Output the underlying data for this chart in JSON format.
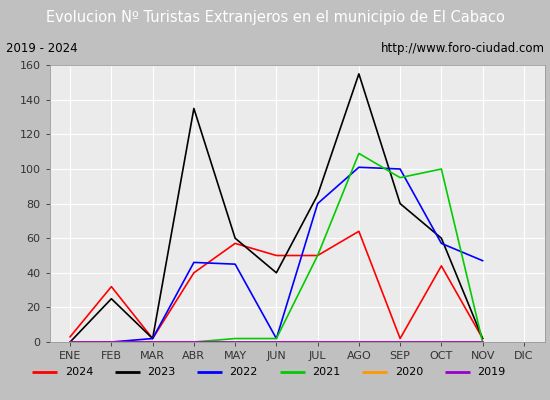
{
  "title": "Evolucion Nº Turistas Extranjeros en el municipio de El Cabaco",
  "subtitle_left": "2019 - 2024",
  "subtitle_right": "http://www.foro-ciudad.com",
  "months": [
    "ENE",
    "FEB",
    "MAR",
    "ABR",
    "MAY",
    "JUN",
    "JUL",
    "AGO",
    "SEP",
    "OCT",
    "NOV",
    "DIC"
  ],
  "series": {
    "2024": [
      3,
      32,
      2,
      40,
      57,
      50,
      50,
      64,
      2,
      44,
      2,
      null
    ],
    "2023": [
      0,
      25,
      2,
      135,
      60,
      40,
      85,
      155,
      80,
      60,
      2,
      null
    ],
    "2022": [
      0,
      0,
      2,
      46,
      45,
      2,
      80,
      101,
      100,
      57,
      47,
      null
    ],
    "2021": [
      0,
      0,
      0,
      0,
      2,
      2,
      50,
      109,
      95,
      100,
      0,
      null
    ],
    "2020": [
      0,
      0,
      0,
      0,
      0,
      0,
      0,
      0,
      0,
      0,
      0,
      null
    ],
    "2019": [
      0,
      0,
      0,
      0,
      0,
      0,
      0,
      0,
      0,
      0,
      0,
      null
    ]
  },
  "colors": {
    "2024": "#ff0000",
    "2023": "#000000",
    "2022": "#0000ff",
    "2021": "#00cc00",
    "2020": "#ff9900",
    "2019": "#9900cc"
  },
  "ylim": [
    0,
    160
  ],
  "yticks": [
    0,
    20,
    40,
    60,
    80,
    100,
    120,
    140,
    160
  ],
  "title_bg_color": "#5599ee",
  "subtitle_bg_color": "#e0e0e0",
  "plot_bg_color": "#ebebeb",
  "grid_color": "#ffffff",
  "outer_bg_color": "#c0c0c0",
  "legend_bg_color": "#ffffff",
  "title_fontsize": 10.5,
  "subtitle_fontsize": 8.5,
  "tick_fontsize": 8,
  "legend_fontsize": 8
}
